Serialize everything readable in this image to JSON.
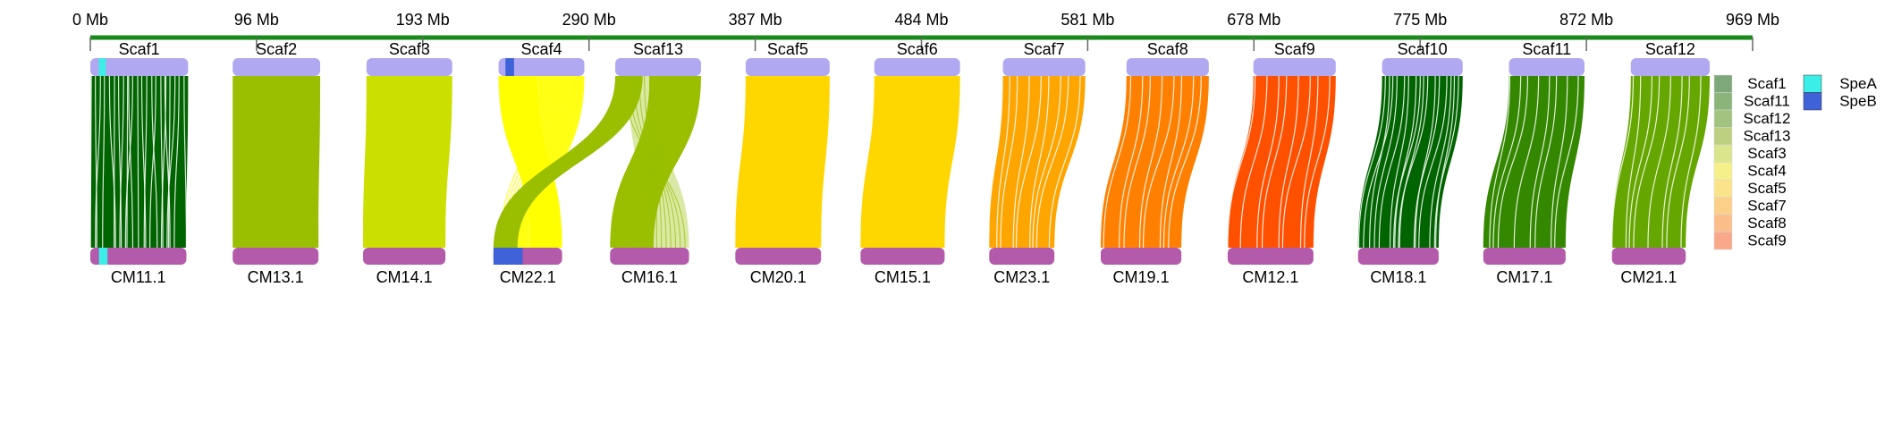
{
  "axis": {
    "color": "#1a8a1a",
    "ticks": [
      "0 Mb",
      "96 Mb",
      "193 Mb",
      "290 Mb",
      "387 Mb",
      "484 Mb",
      "581 Mb",
      "678 Mb",
      "775 Mb",
      "872 Mb",
      "969 Mb"
    ]
  },
  "top_track": {
    "color": "#b0a8f0"
  },
  "bottom_track": {
    "color": "#b45aaa"
  },
  "pairs": [
    {
      "top": "Scaf1",
      "bottom": "CM11.1",
      "color": "#006400",
      "topSpan": [
        0,
        57
      ],
      "botSpan": [
        0,
        56
      ],
      "mode": "straight",
      "hatch": 3
    },
    {
      "top": "Scaf2",
      "bottom": "CM13.1",
      "color": "#99bf00",
      "topSpan": [
        83,
        134
      ],
      "botSpan": [
        83,
        133
      ],
      "mode": "straight",
      "hatch": 0
    },
    {
      "top": "Scaf3",
      "bottom": "CM14.1",
      "color": "#cce000",
      "topSpan": [
        161,
        211
      ],
      "botSpan": [
        159,
        207
      ],
      "mode": "straight",
      "hatch": 0
    },
    {
      "top": "Scaf4",
      "bottom": "CM22.1",
      "color": "#ffff00",
      "topSpan": [
        238,
        288
      ],
      "botSpan": [
        235,
        275
      ],
      "mode": "cross",
      "hatch": 0
    },
    {
      "top": "Scaf13",
      "bottom": "CM16.1",
      "color": "#99bf00",
      "topSpan": [
        306,
        356
      ],
      "botSpan": [
        303,
        349
      ],
      "mode": "cross",
      "hatch": 0
    },
    {
      "top": "Scaf5",
      "bottom": "CM20.1",
      "color": "#ffd700",
      "topSpan": [
        382,
        431
      ],
      "botSpan": [
        376,
        426
      ],
      "mode": "curve",
      "hatch": 0
    },
    {
      "top": "Scaf6",
      "bottom": "CM15.1",
      "color": "#ffd700",
      "topSpan": [
        457,
        507
      ],
      "botSpan": [
        449,
        498
      ],
      "mode": "curve",
      "hatch": 0
    },
    {
      "top": "Scaf7",
      "bottom": "CM23.1",
      "color": "#ffa500",
      "topSpan": [
        532,
        580
      ],
      "botSpan": [
        524,
        562
      ],
      "mode": "curve",
      "hatch": 1
    },
    {
      "top": "Scaf8",
      "bottom": "CM19.1",
      "color": "#ff8000",
      "topSpan": [
        604,
        652
      ],
      "botSpan": [
        589,
        636
      ],
      "mode": "curve",
      "hatch": 1
    },
    {
      "top": "Scaf9",
      "bottom": "CM12.1",
      "color": "#ff5000",
      "topSpan": [
        678,
        726
      ],
      "botSpan": [
        663,
        713
      ],
      "mode": "curve",
      "hatch": 1
    },
    {
      "top": "Scaf10",
      "bottom": "CM18.1",
      "color": "#006400",
      "topSpan": [
        753,
        800
      ],
      "botSpan": [
        739,
        786
      ],
      "mode": "curve",
      "hatch": 2
    },
    {
      "top": "Scaf11",
      "bottom": "CM17.1",
      "color": "#338800",
      "topSpan": [
        827,
        871
      ],
      "botSpan": [
        812,
        860
      ],
      "mode": "curve",
      "hatch": 1
    },
    {
      "top": "Scaf12",
      "bottom": "CM21.1",
      "color": "#66a600",
      "topSpan": [
        898,
        944
      ],
      "botSpan": [
        887,
        930
      ],
      "mode": "curve",
      "hatch": 1
    }
  ],
  "markers": [
    {
      "name": "SpeA",
      "track": "top",
      "pos": [
        5,
        9
      ],
      "color": "#3ceee8"
    },
    {
      "name": "SpeA",
      "track": "bottom",
      "pos": [
        5,
        10
      ],
      "color": "#3ceee8"
    },
    {
      "name": "SpeB",
      "track": "top",
      "pos": [
        242,
        247
      ],
      "color": "#3f62d8"
    },
    {
      "name": "SpeB",
      "track": "bottom",
      "pos": [
        235,
        252
      ],
      "color": "#3f62d8"
    }
  ],
  "legend_scaffolds": [
    {
      "label": "Scaf1",
      "color": "#7ea87a"
    },
    {
      "label": "Scaf11",
      "color": "#8bb47a"
    },
    {
      "label": "Scaf12",
      "color": "#a2c27f"
    },
    {
      "label": "Scaf13",
      "color": "#bdd081"
    },
    {
      "label": "Scaf3",
      "color": "#dbe68c"
    },
    {
      "label": "Scaf4",
      "color": "#f6f08a"
    },
    {
      "label": "Scaf5",
      "color": "#fbe389"
    },
    {
      "label": "Scaf7",
      "color": "#fcd088"
    },
    {
      "label": "Scaf8",
      "color": "#fbbd8a"
    },
    {
      "label": "Scaf9",
      "color": "#f9a88a"
    }
  ],
  "legend_markers": [
    {
      "label": "SpeA",
      "color": "#3ceee8"
    },
    {
      "label": "SpeB",
      "color": "#3f62d8"
    }
  ]
}
